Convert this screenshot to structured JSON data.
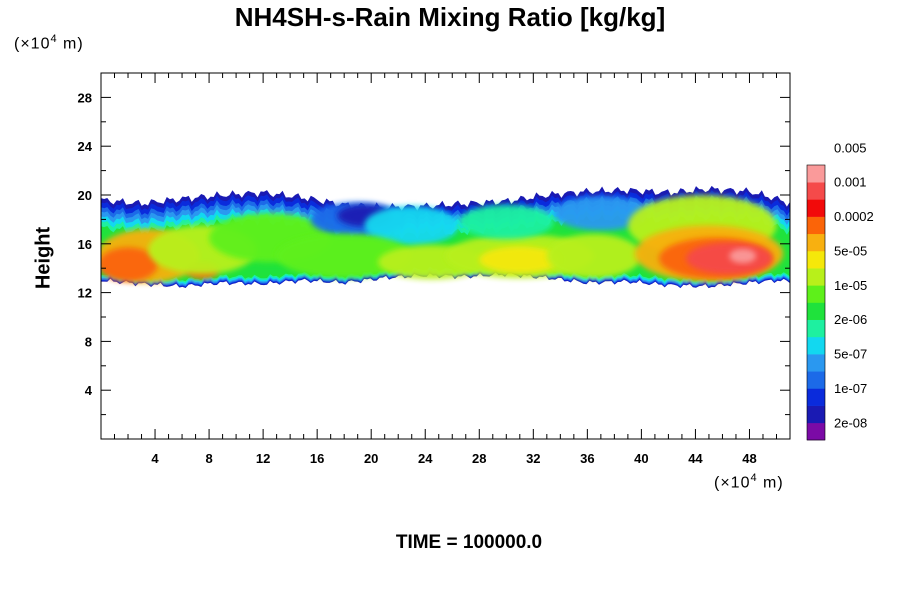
{
  "chart_data": {
    "type": "heatmap",
    "title": "NH4SH-s-Rain Mixing Ratio [kg/kg]",
    "ylabel": "Height",
    "x_unit": {
      "prefix": "(×10",
      "exp": "4",
      "suffix": " m)"
    },
    "y_unit": {
      "prefix": "(×10",
      "exp": "4",
      "suffix": " m)"
    },
    "time_label": "TIME = 100000.0",
    "xlim": [
      0,
      51
    ],
    "ylim": [
      0,
      30
    ],
    "x_ticks": [
      4,
      8,
      12,
      16,
      20,
      24,
      28,
      32,
      36,
      40,
      44,
      48
    ],
    "y_ticks": [
      4,
      8,
      12,
      16,
      20,
      24,
      28
    ],
    "grid": false,
    "legend_placement": "right",
    "colorbar": {
      "colors": [
        "#7b0aa6",
        "#1a1ab3",
        "#0a2bdc",
        "#1c6ae8",
        "#2a98f0",
        "#12d8f0",
        "#1ef0a0",
        "#1fe23c",
        "#5ef01a",
        "#b8f01a",
        "#f5e80a",
        "#f8b010",
        "#fb6408",
        "#f20a0a",
        "#f54a4a",
        "#fa9a9a"
      ],
      "labels": [
        "2e-08",
        "1e-07",
        "5e-07",
        "2e-06",
        "1e-05",
        "5e-05",
        "0.0002",
        "0.001",
        "0.005"
      ]
    },
    "band": {
      "bottom_km": [
        13.0,
        12.7,
        12.5,
        12.8,
        12.7,
        13.0,
        12.8,
        13.2,
        13.4,
        13.3,
        13.5,
        13.2,
        12.8,
        12.9,
        12.6,
        12.5,
        12.8,
        13.0,
        12.9
      ],
      "top_km": [
        19.6,
        19.3,
        19.7,
        20.0,
        20.2,
        19.8,
        19.2,
        19.0,
        19.1,
        19.3,
        19.5,
        20.0,
        20.3,
        20.4,
        20.2,
        20.5,
        20.3,
        19.7,
        19.3
      ],
      "x_nodes": [
        0,
        3,
        6,
        9,
        12,
        15,
        18,
        21,
        24,
        27,
        30,
        33,
        36,
        39,
        42,
        45,
        48,
        50,
        51
      ]
    },
    "blobs": [
      {
        "x": 3.5,
        "y": 15.0,
        "rx": 3.8,
        "ry": 2.2,
        "level": 11
      },
      {
        "x": 2.0,
        "y": 14.3,
        "rx": 2.2,
        "ry": 1.4,
        "level": 12
      },
      {
        "x": 7.5,
        "y": 13.8,
        "rx": 1.2,
        "ry": 0.7,
        "level": 12
      },
      {
        "x": 7.5,
        "y": 15.5,
        "rx": 4.0,
        "ry": 2.0,
        "level": 9
      },
      {
        "x": 12.5,
        "y": 16.5,
        "rx": 4.5,
        "ry": 2.0,
        "level": 8
      },
      {
        "x": 19.0,
        "y": 18.0,
        "rx": 3.5,
        "ry": 1.4,
        "level": 3
      },
      {
        "x": 19.5,
        "y": 18.3,
        "rx": 2.0,
        "ry": 0.9,
        "level": 1
      },
      {
        "x": 23.0,
        "y": 17.5,
        "rx": 3.5,
        "ry": 1.6,
        "level": 5
      },
      {
        "x": 18.0,
        "y": 15.0,
        "rx": 5.0,
        "ry": 1.8,
        "level": 8
      },
      {
        "x": 24.5,
        "y": 14.5,
        "rx": 4.0,
        "ry": 1.4,
        "level": 9
      },
      {
        "x": 31.0,
        "y": 15.0,
        "rx": 5.5,
        "ry": 1.8,
        "level": 9
      },
      {
        "x": 31.0,
        "y": 14.7,
        "rx": 3.0,
        "ry": 1.1,
        "level": 10
      },
      {
        "x": 30.0,
        "y": 17.8,
        "rx": 3.5,
        "ry": 1.4,
        "level": 6
      },
      {
        "x": 37.0,
        "y": 18.5,
        "rx": 3.5,
        "ry": 1.4,
        "level": 4
      },
      {
        "x": 36.5,
        "y": 15.0,
        "rx": 3.5,
        "ry": 1.8,
        "level": 9
      },
      {
        "x": 44.5,
        "y": 17.5,
        "rx": 5.5,
        "ry": 2.5,
        "level": 9
      },
      {
        "x": 45.0,
        "y": 15.2,
        "rx": 5.5,
        "ry": 2.3,
        "level": 11
      },
      {
        "x": 45.5,
        "y": 14.8,
        "rx": 4.2,
        "ry": 1.7,
        "level": 12
      },
      {
        "x": 46.5,
        "y": 14.8,
        "rx": 3.2,
        "ry": 1.3,
        "level": 14
      },
      {
        "x": 47.5,
        "y": 15.0,
        "rx": 1.0,
        "ry": 0.6,
        "level": 15
      }
    ]
  }
}
